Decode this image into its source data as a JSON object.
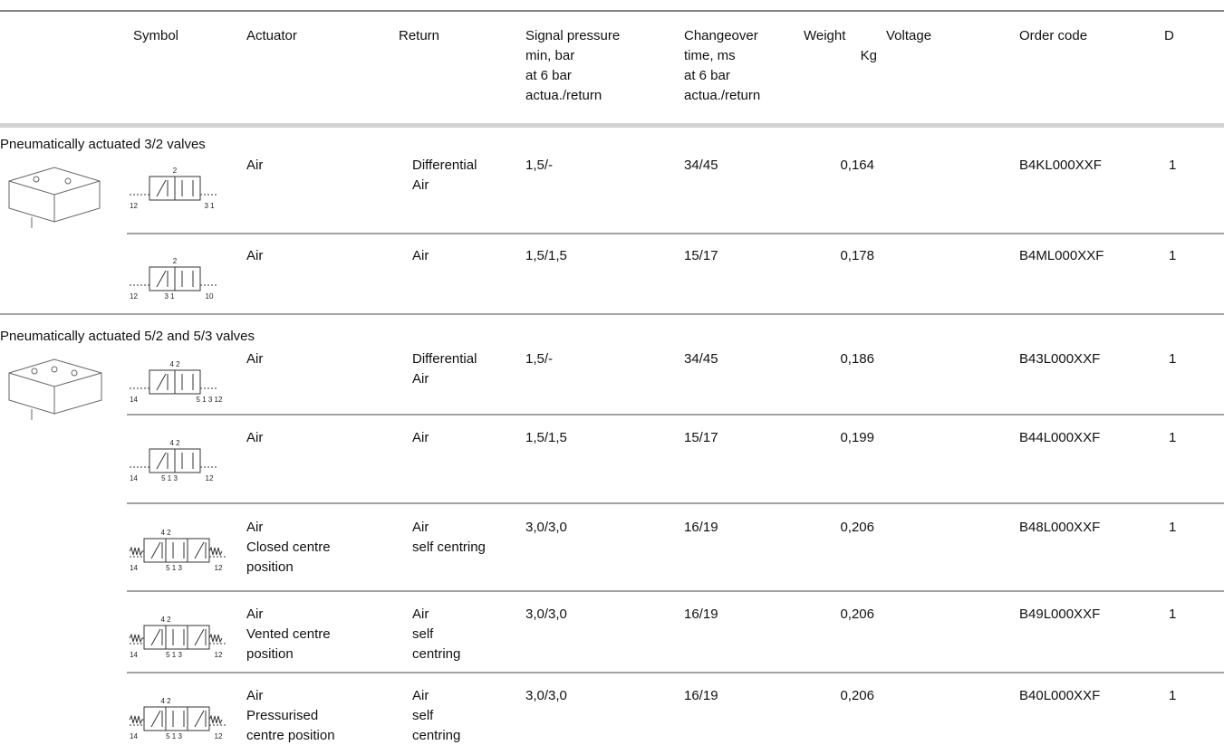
{
  "header": {
    "columns": [
      {
        "lines": [
          "Symbol"
        ]
      },
      {
        "lines": [
          "Actuator"
        ]
      },
      {
        "lines": [
          "Return"
        ]
      },
      {
        "lines": [
          "Signal pressure",
          "min, bar",
          "at 6 bar",
          "actua./return"
        ]
      },
      {
        "lines": [
          "Changeover",
          "time, ms",
          "at 6 bar",
          "actua./return"
        ]
      },
      {
        "lines": [
          "Weight",
          "Kg"
        ]
      },
      {
        "lines": [
          "Voltage"
        ]
      },
      {
        "lines": [
          "Order code"
        ]
      },
      {
        "lines": [
          "D"
        ]
      }
    ]
  },
  "sections": [
    {
      "title": "Pneumatically actuated 3/2 valves",
      "rows": [
        {
          "symbol": {
            "top": "2",
            "bottom": [
              "12",
              "3 1"
            ]
          },
          "actuator": [
            "Air"
          ],
          "return": [
            "Differential",
            "Air"
          ],
          "signal": "1,5/-",
          "changeover": "34/45",
          "weight": "0,164",
          "order_code": "B4KL000XXF",
          "d": "1"
        },
        {
          "symbol": {
            "top": "2",
            "bottom": [
              "12",
              "3 1",
              "10"
            ]
          },
          "actuator": [
            "Air"
          ],
          "return": [
            "Air"
          ],
          "signal": "1,5/1,5",
          "changeover": "15/17",
          "weight": "0,178",
          "order_code": "B4ML000XXF",
          "d": "1"
        }
      ]
    },
    {
      "title": "Pneumatically actuated 5/2 and 5/3 valves",
      "rows": [
        {
          "symbol": {
            "top": "4 2",
            "bottom": [
              "14",
              "5 1 3 12"
            ]
          },
          "actuator": [
            "Air"
          ],
          "return": [
            "Differential",
            "Air"
          ],
          "signal": "1,5/-",
          "changeover": "34/45",
          "weight": "0,186",
          "order_code": "B43L000XXF",
          "d": "1"
        },
        {
          "symbol": {
            "top": "4 2",
            "bottom": [
              "14",
              "5 1 3",
              "12"
            ]
          },
          "actuator": [
            "Air"
          ],
          "return": [
            "Air"
          ],
          "signal": "1,5/1,5",
          "changeover": "15/17",
          "weight": "0,199",
          "order_code": "B44L000XXF",
          "d": "1"
        },
        {
          "symbol": {
            "top": "4 2",
            "bottom": [
              "14",
              "5 1 3",
              "12"
            ]
          },
          "actuator": [
            "Air",
            "Closed centre",
            "position"
          ],
          "return": [
            "Air",
            "self centring"
          ],
          "signal": "3,0/3,0",
          "changeover": "16/19",
          "weight": "0,206",
          "order_code": "B48L000XXF",
          "d": "1"
        },
        {
          "symbol": {
            "top": "4 2",
            "bottom": [
              "14",
              "5 1 3",
              "12"
            ]
          },
          "actuator": [
            "Air",
            "Vented centre",
            "position"
          ],
          "return": [
            "Air",
            "self",
            "centring"
          ],
          "signal": "3,0/3,0",
          "changeover": "16/19",
          "weight": "0,206",
          "order_code": "B49L000XXF",
          "d": "1"
        },
        {
          "symbol": {
            "top": "4 2",
            "bottom": [
              "14",
              "5 1 3",
              "12"
            ]
          },
          "actuator": [
            "Air",
            "Pressurised",
            "centre position"
          ],
          "return": [
            "Air",
            "self",
            "centring"
          ],
          "signal": "3,0/3,0",
          "changeover": "16/19",
          "weight": "0,206",
          "order_code": "B40L000XXF",
          "d": "1"
        }
      ]
    }
  ]
}
